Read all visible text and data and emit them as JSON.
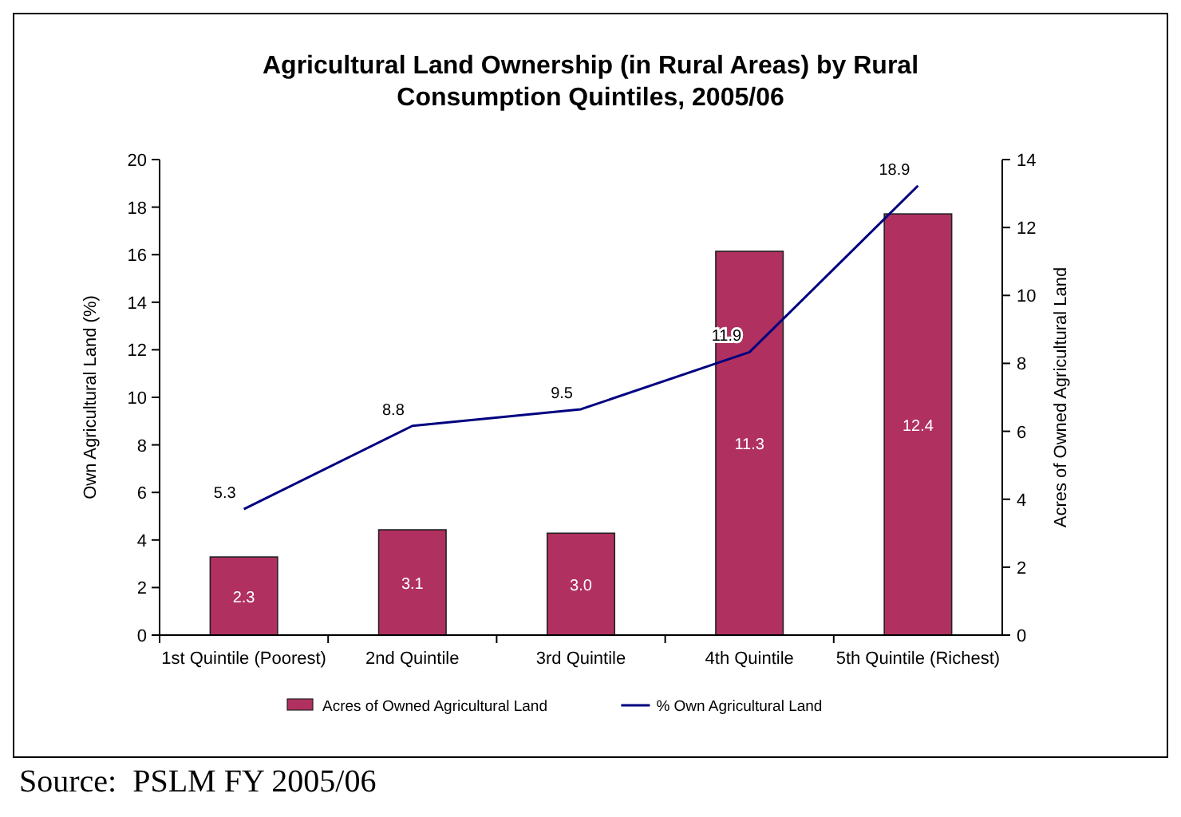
{
  "chart_data": {
    "type": "bar",
    "title": "Agricultural Land Ownership (in Rural Areas) by Rural Consumption Quintiles, 2005/06",
    "ylabel": "Own Agricultural Land (%)",
    "y2label": "Acres of Owned Agricultural Land",
    "categories": [
      "1st Quintile (Poorest)",
      "2nd Quintile",
      "3rd Quintile",
      "4th Quintile",
      "5th Quintile (Richest)"
    ],
    "series": [
      {
        "name": "Acres of Owned Agricultural Land",
        "axis": "y2",
        "color": "#b03060",
        "values": [
          2.3,
          3.1,
          3.0,
          11.3,
          12.4
        ],
        "value_labels": [
          "2.3",
          "3.1",
          "3.0",
          "11.3",
          "12.4"
        ]
      },
      {
        "name": "% Own Agricultural Land",
        "type": "line",
        "axis": "y",
        "color": "#000080",
        "values": [
          5.3,
          8.8,
          9.5,
          11.9,
          18.9
        ],
        "value_labels": [
          "5.3",
          "8.8",
          "9.5",
          "11.9",
          "18.9"
        ]
      }
    ],
    "ylim": [
      0,
      20
    ],
    "yticks": [
      0,
      2,
      4,
      6,
      8,
      10,
      12,
      14,
      16,
      18,
      20
    ],
    "y2lim": [
      0,
      14
    ],
    "y2ticks": [
      0,
      2,
      4,
      6,
      8,
      10,
      12,
      14
    ],
    "grid": false,
    "legend": "bottom",
    "marker": "none",
    "line_style": "solid",
    "annotations": [
      "Source:  PSLM FY 2005/06"
    ]
  }
}
